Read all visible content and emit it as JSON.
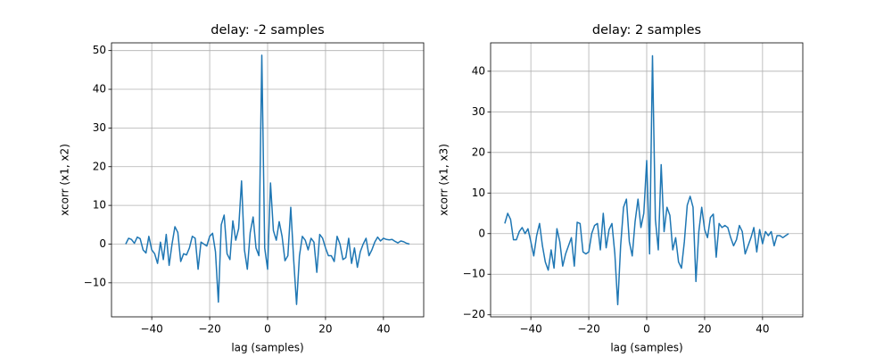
{
  "chart_data": [
    {
      "type": "line",
      "title": "delay: -2 samples",
      "xlabel": "lag (samples)",
      "ylabel": "xcorr (x1, x2)",
      "x": [
        -49,
        -48,
        -47,
        -46,
        -45,
        -44,
        -43,
        -42,
        -41,
        -40,
        -39,
        -38,
        -37,
        -36,
        -35,
        -34,
        -33,
        -32,
        -31,
        -30,
        -29,
        -28,
        -27,
        -26,
        -25,
        -24,
        -23,
        -22,
        -21,
        -20,
        -19,
        -18,
        -17,
        -16,
        -15,
        -14,
        -13,
        -12,
        -11,
        -10,
        -9,
        -8,
        -7,
        -6,
        -5,
        -4,
        -3,
        -2,
        -1,
        0,
        1,
        2,
        3,
        4,
        5,
        6,
        7,
        8,
        9,
        10,
        11,
        12,
        13,
        14,
        15,
        16,
        17,
        18,
        19,
        20,
        21,
        22,
        23,
        24,
        25,
        26,
        27,
        28,
        29,
        30,
        31,
        32,
        33,
        34,
        35,
        36,
        37,
        38,
        39,
        40,
        41,
        42,
        43,
        44,
        45,
        46,
        47,
        48,
        49
      ],
      "series": [
        {
          "color": "#1f77b4",
          "values": [
            0,
            1.5,
            1.2,
            0.2,
            1.8,
            1.4,
            -1.5,
            -2.3,
            2.0,
            -1.5,
            -2.5,
            -5.0,
            0.5,
            -4.0,
            2.5,
            -5.5,
            0,
            4.5,
            3,
            -4.5,
            -2.5,
            -2.8,
            -1,
            2,
            1.5,
            -6.5,
            0.5,
            0,
            -0.5,
            2,
            2.8,
            -2,
            -15,
            5,
            7.5,
            -2.5,
            -4,
            6,
            1,
            4,
            16.3,
            -1.5,
            -6.5,
            3,
            7,
            -1,
            -3,
            48.8,
            -1,
            -6.5,
            15.8,
            3.5,
            1,
            5.8,
            2,
            -4.3,
            -3,
            9.5,
            -4,
            -15.6,
            -3,
            2,
            1,
            -1.5,
            1.5,
            0.5,
            -7.3,
            2.5,
            1.5,
            -1,
            -3,
            -3,
            -4.5,
            2,
            0,
            -4,
            -3.5,
            1.5,
            -5,
            -1,
            -6,
            -2,
            0,
            1.5,
            -3,
            -1.5,
            0.5,
            1.8,
            0.8,
            1.5,
            1.2,
            1.1,
            1.2,
            0.7,
            0.3,
            0.8,
            0.6,
            0.2,
            0
          ]
        }
      ],
      "xlim": [
        -53.9,
        53.9
      ],
      "ylim": [
        -18.8,
        52.0
      ],
      "xticks": [
        {
          "value": -40,
          "label": "−40"
        },
        {
          "value": -20,
          "label": "−20"
        },
        0,
        20,
        40
      ],
      "yticks": [
        {
          "value": -10,
          "label": "−10"
        },
        0,
        10,
        20,
        30,
        40,
        50
      ],
      "grid": true
    },
    {
      "type": "line",
      "title": "delay: 2 samples",
      "xlabel": "lag (samples)",
      "ylabel": "xcorr (x1, x3)",
      "x": [
        -49,
        -48,
        -47,
        -46,
        -45,
        -44,
        -43,
        -42,
        -41,
        -40,
        -39,
        -38,
        -37,
        -36,
        -35,
        -34,
        -33,
        -32,
        -31,
        -30,
        -29,
        -28,
        -27,
        -26,
        -25,
        -24,
        -23,
        -22,
        -21,
        -20,
        -19,
        -18,
        -17,
        -16,
        -15,
        -14,
        -13,
        -12,
        -11,
        -10,
        -9,
        -8,
        -7,
        -6,
        -5,
        -4,
        -3,
        -2,
        -1,
        0,
        1,
        2,
        3,
        4,
        5,
        6,
        7,
        8,
        9,
        10,
        11,
        12,
        13,
        14,
        15,
        16,
        17,
        18,
        19,
        20,
        21,
        22,
        23,
        24,
        25,
        26,
        27,
        28,
        29,
        30,
        31,
        32,
        33,
        34,
        35,
        36,
        37,
        38,
        39,
        40,
        41,
        42,
        43,
        44,
        45,
        46,
        47,
        48,
        49
      ],
      "series": [
        {
          "color": "#1f77b4",
          "values": [
            2.5,
            5,
            3.5,
            -1.5,
            -1.5,
            0.5,
            1.5,
            0,
            1.2,
            -2,
            -5.5,
            -0.5,
            2.5,
            -3,
            -7,
            -9,
            -4,
            -8.5,
            1.2,
            -2,
            -8,
            -5,
            -3,
            -1,
            -8,
            2.8,
            2.5,
            -4.5,
            -5,
            -4.5,
            0,
            2,
            2.5,
            -4,
            5,
            -3.5,
            1,
            2.5,
            -5,
            -17.5,
            -3,
            6.5,
            8.5,
            -2,
            -5.5,
            3,
            8.5,
            1.5,
            5,
            18,
            -5,
            43.8,
            3.5,
            -4,
            17,
            0.5,
            6.5,
            4.5,
            -4,
            -1,
            -7,
            -8.5,
            -2,
            7,
            9.2,
            6.5,
            -11.8,
            0.5,
            6.5,
            1,
            -1,
            4,
            4.8,
            -5.8,
            2.5,
            1.5,
            2,
            1.5,
            -1,
            -3,
            -1.5,
            2,
            0.5,
            -5,
            -3,
            -1,
            1.5,
            -4.5,
            1,
            -2.5,
            0.5,
            -0.5,
            0.5,
            -3,
            -0.5,
            -0.5,
            -1,
            -0.5,
            0
          ]
        }
      ],
      "xlim": [
        -53.9,
        53.9
      ],
      "ylim": [
        -20.5,
        47
      ],
      "xticks": [
        {
          "value": -40,
          "label": "−40"
        },
        {
          "value": -20,
          "label": "−20"
        },
        0,
        20,
        40
      ],
      "yticks": [
        {
          "value": -20,
          "label": "−20"
        },
        {
          "value": -10,
          "label": "−10"
        },
        0,
        10,
        20,
        30,
        40
      ],
      "grid": true
    }
  ]
}
